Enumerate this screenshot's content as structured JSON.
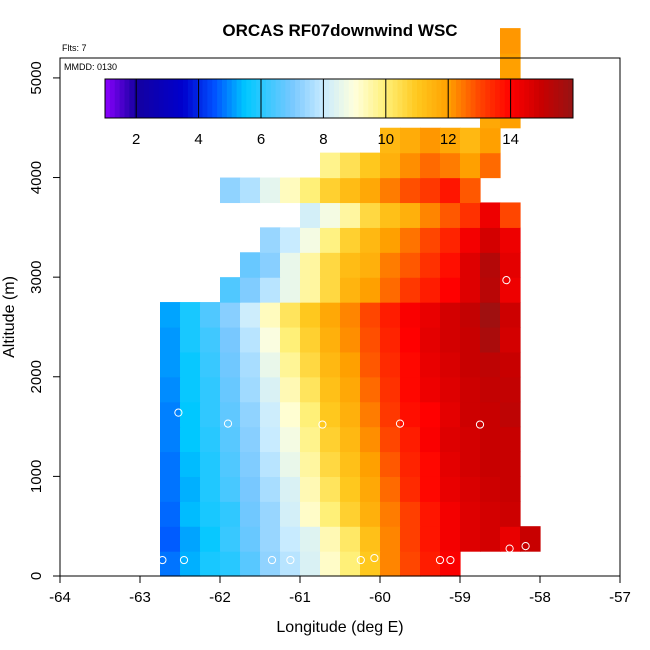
{
  "chart_data": {
    "type": "heatmap",
    "title": "ORCAS RF07downwind WSC",
    "xlabel": "Longitude (deg E)",
    "ylabel": "Altitude (m)",
    "flights_note": "Flts: 7",
    "date_note": "MMDD: 0130",
    "xlim": [
      -64,
      -57
    ],
    "ylim": [
      0,
      5200
    ],
    "x_ticks": [
      "-64",
      "-63",
      "-62",
      "-61",
      "-60",
      "-59",
      "-58",
      "-57"
    ],
    "y_ticks": [
      "0",
      "1000",
      "2000",
      "3000",
      "4000",
      "5000"
    ],
    "colorbar": {
      "range": [
        1,
        16
      ],
      "ticks": [
        "2",
        "4",
        "6",
        "8",
        "10",
        "12",
        "14"
      ]
    },
    "grid": {
      "lon_start": -62.75,
      "lon_step": 0.25,
      "alt_start": 0,
      "alt_step": 250,
      "rows_bottom_to_top": [
        [
          4.8,
          5.3,
          5.8,
          6.0,
          6.6,
          7.3,
          7.8,
          8.3,
          9.2,
          10.0,
          11.0,
          12.3,
          13.0,
          13.6,
          14.1
        ],
        [
          4.6,
          5.2,
          5.6,
          6.2,
          6.8,
          7.4,
          8.0,
          8.4,
          9.4,
          10.2,
          11.2,
          12.3,
          13.1,
          13.7,
          14.2,
          14.6,
          14.8,
          14.4,
          15.0
        ],
        [
          4.7,
          5.4,
          5.8,
          6.1,
          6.9,
          7.4,
          8.2,
          9.2,
          10.0,
          10.8,
          11.6,
          12.4,
          13.1,
          13.7,
          14.2,
          14.6,
          14.8,
          14.9
        ],
        [
          4.8,
          5.3,
          5.9,
          6.4,
          7.0,
          7.6,
          8.3,
          9.4,
          10.3,
          11.0,
          11.8,
          12.6,
          13.4,
          13.9,
          14.4,
          14.7,
          14.9,
          15.0
        ],
        [
          4.8,
          5.4,
          5.9,
          6.5,
          7.1,
          7.8,
          8.6,
          9.6,
          10.6,
          11.2,
          12.0,
          12.8,
          13.5,
          13.9,
          14.5,
          14.8,
          15.0,
          15.0
        ],
        [
          4.9,
          5.5,
          6.0,
          6.6,
          7.2,
          8.0,
          8.8,
          9.8,
          10.8,
          11.4,
          12.2,
          13.0,
          13.6,
          14.1,
          14.6,
          14.8,
          15.0,
          15.0
        ],
        [
          4.9,
          5.5,
          6.1,
          6.7,
          7.3,
          8.1,
          9.1,
          10.0,
          11.0,
          11.6,
          12.4,
          13.2,
          13.8,
          14.0,
          14.5,
          14.9,
          15.0,
          15.2
        ],
        [
          5.0,
          5.6,
          6.1,
          6.8,
          7.5,
          8.3,
          9.4,
          10.3,
          11.2,
          11.8,
          12.6,
          13.3,
          13.9,
          14.3,
          14.6,
          14.9,
          15.1,
          15.1
        ],
        [
          5.1,
          5.6,
          6.2,
          6.9,
          7.6,
          8.6,
          9.7,
          10.6,
          11.4,
          12.0,
          12.8,
          13.4,
          13.9,
          14.4,
          14.7,
          15.0,
          15.2,
          15.0
        ],
        [
          5.1,
          5.8,
          6.3,
          7.0,
          7.8,
          8.9,
          10.0,
          10.8,
          11.6,
          12.2,
          12.9,
          13.5,
          14.0,
          14.5,
          14.8,
          15.0,
          15.6,
          14.8
        ],
        [
          5.2,
          5.8,
          6.5,
          7.2,
          8.1,
          9.3,
          10.3,
          11.0,
          11.8,
          12.3,
          13.0,
          13.6,
          14.1,
          14.4,
          14.8,
          15.1,
          15.8,
          14.9
        ],
        [
          6.5,
          7.1,
          7.8,
          8.6,
          9.6,
          10.6,
          11.5,
          12.0,
          12.6,
          13.2,
          13.6,
          14.0,
          14.6,
          15.3,
          14.3
        ],
        [
          6.8,
          7.2,
          8.6,
          9.6,
          10.6,
          11.3,
          11.6,
          12.4,
          12.8,
          13.3,
          13.8,
          14.6,
          15.4,
          14.5
        ],
        [
          7.4,
          8.0,
          8.8,
          9.9,
          10.8,
          11.4,
          12.0,
          12.5,
          13.0,
          13.5,
          14.2,
          14.8,
          14.3
        ],
        [
          8.2,
          8.8,
          9.6,
          10.6,
          11.2,
          11.6,
          12.3,
          12.8,
          13.3,
          14.3,
          13.0
        ],
        [
          7.3,
          7.7,
          8.5,
          9.3,
          10.0,
          10.8,
          11.3,
          11.8,
          12.4,
          12.9,
          13.2,
          13.7,
          12.8
        ],
        [
          9.8,
          10.4,
          11.0,
          11.6,
          12.2,
          12.6,
          12.4,
          12.0,
          12.6
        ],
        [
          11.4,
          11.7,
          12.1,
          11.8,
          11.4,
          12.0
        ],
        [
          11.8,
          12.0
        ],
        [
          11.9
        ],
        [
          12.0
        ],
        [
          12.1
        ]
      ],
      "row_start_offsets": [
        0,
        0,
        0,
        0,
        0,
        0,
        0,
        0,
        0,
        0,
        0,
        3,
        4,
        5,
        7,
        3,
        8,
        11,
        16,
        17,
        17,
        17
      ]
    },
    "points": [
      {
        "lon": -62.72,
        "alt": 160
      },
      {
        "lon": -62.45,
        "alt": 160
      },
      {
        "lon": -62.52,
        "alt": 1640
      },
      {
        "lon": -61.9,
        "alt": 1530
      },
      {
        "lon": -61.35,
        "alt": 160
      },
      {
        "lon": -61.12,
        "alt": 160
      },
      {
        "lon": -60.72,
        "alt": 1520
      },
      {
        "lon": -60.24,
        "alt": 160
      },
      {
        "lon": -60.07,
        "alt": 180
      },
      {
        "lon": -59.75,
        "alt": 1530
      },
      {
        "lon": -59.25,
        "alt": 160
      },
      {
        "lon": -59.12,
        "alt": 160
      },
      {
        "lon": -58.75,
        "alt": 1520
      },
      {
        "lon": -58.38,
        "alt": 275
      },
      {
        "lon": -58.18,
        "alt": 300
      },
      {
        "lon": -58.42,
        "alt": 2970
      }
    ]
  }
}
